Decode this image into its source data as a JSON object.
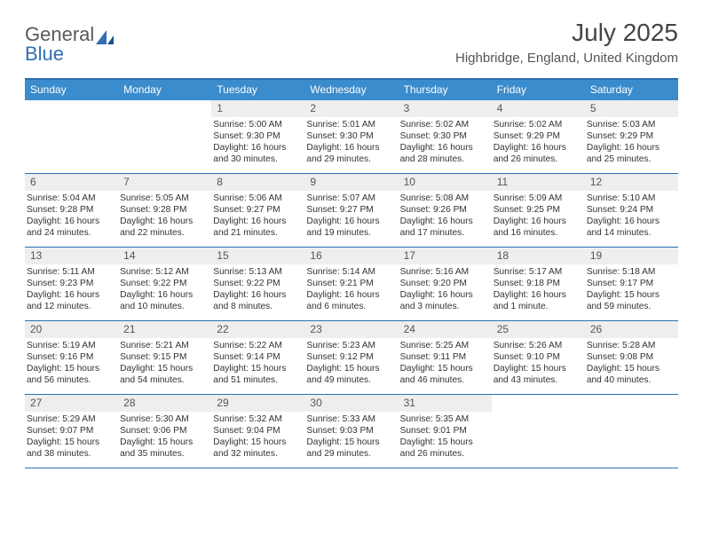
{
  "brand": {
    "text1": "General",
    "text2": "Blue"
  },
  "title": "July 2025",
  "location": "Highbridge, England, United Kingdom",
  "colors": {
    "header_bg": "#3b8ccc",
    "header_text": "#ffffff",
    "border": "#2a6db5",
    "daynum_bg": "#eeeeee",
    "text": "#333333"
  },
  "dayNames": [
    "Sunday",
    "Monday",
    "Tuesday",
    "Wednesday",
    "Thursday",
    "Friday",
    "Saturday"
  ],
  "weeks": [
    [
      {
        "day": "",
        "sunrise": "",
        "sunset": "",
        "daylight": ""
      },
      {
        "day": "",
        "sunrise": "",
        "sunset": "",
        "daylight": ""
      },
      {
        "day": "1",
        "sunrise": "Sunrise: 5:00 AM",
        "sunset": "Sunset: 9:30 PM",
        "daylight": "Daylight: 16 hours and 30 minutes."
      },
      {
        "day": "2",
        "sunrise": "Sunrise: 5:01 AM",
        "sunset": "Sunset: 9:30 PM",
        "daylight": "Daylight: 16 hours and 29 minutes."
      },
      {
        "day": "3",
        "sunrise": "Sunrise: 5:02 AM",
        "sunset": "Sunset: 9:30 PM",
        "daylight": "Daylight: 16 hours and 28 minutes."
      },
      {
        "day": "4",
        "sunrise": "Sunrise: 5:02 AM",
        "sunset": "Sunset: 9:29 PM",
        "daylight": "Daylight: 16 hours and 26 minutes."
      },
      {
        "day": "5",
        "sunrise": "Sunrise: 5:03 AM",
        "sunset": "Sunset: 9:29 PM",
        "daylight": "Daylight: 16 hours and 25 minutes."
      }
    ],
    [
      {
        "day": "6",
        "sunrise": "Sunrise: 5:04 AM",
        "sunset": "Sunset: 9:28 PM",
        "daylight": "Daylight: 16 hours and 24 minutes."
      },
      {
        "day": "7",
        "sunrise": "Sunrise: 5:05 AM",
        "sunset": "Sunset: 9:28 PM",
        "daylight": "Daylight: 16 hours and 22 minutes."
      },
      {
        "day": "8",
        "sunrise": "Sunrise: 5:06 AM",
        "sunset": "Sunset: 9:27 PM",
        "daylight": "Daylight: 16 hours and 21 minutes."
      },
      {
        "day": "9",
        "sunrise": "Sunrise: 5:07 AM",
        "sunset": "Sunset: 9:27 PM",
        "daylight": "Daylight: 16 hours and 19 minutes."
      },
      {
        "day": "10",
        "sunrise": "Sunrise: 5:08 AM",
        "sunset": "Sunset: 9:26 PM",
        "daylight": "Daylight: 16 hours and 17 minutes."
      },
      {
        "day": "11",
        "sunrise": "Sunrise: 5:09 AM",
        "sunset": "Sunset: 9:25 PM",
        "daylight": "Daylight: 16 hours and 16 minutes."
      },
      {
        "day": "12",
        "sunrise": "Sunrise: 5:10 AM",
        "sunset": "Sunset: 9:24 PM",
        "daylight": "Daylight: 16 hours and 14 minutes."
      }
    ],
    [
      {
        "day": "13",
        "sunrise": "Sunrise: 5:11 AM",
        "sunset": "Sunset: 9:23 PM",
        "daylight": "Daylight: 16 hours and 12 minutes."
      },
      {
        "day": "14",
        "sunrise": "Sunrise: 5:12 AM",
        "sunset": "Sunset: 9:22 PM",
        "daylight": "Daylight: 16 hours and 10 minutes."
      },
      {
        "day": "15",
        "sunrise": "Sunrise: 5:13 AM",
        "sunset": "Sunset: 9:22 PM",
        "daylight": "Daylight: 16 hours and 8 minutes."
      },
      {
        "day": "16",
        "sunrise": "Sunrise: 5:14 AM",
        "sunset": "Sunset: 9:21 PM",
        "daylight": "Daylight: 16 hours and 6 minutes."
      },
      {
        "day": "17",
        "sunrise": "Sunrise: 5:16 AM",
        "sunset": "Sunset: 9:20 PM",
        "daylight": "Daylight: 16 hours and 3 minutes."
      },
      {
        "day": "18",
        "sunrise": "Sunrise: 5:17 AM",
        "sunset": "Sunset: 9:18 PM",
        "daylight": "Daylight: 16 hours and 1 minute."
      },
      {
        "day": "19",
        "sunrise": "Sunrise: 5:18 AM",
        "sunset": "Sunset: 9:17 PM",
        "daylight": "Daylight: 15 hours and 59 minutes."
      }
    ],
    [
      {
        "day": "20",
        "sunrise": "Sunrise: 5:19 AM",
        "sunset": "Sunset: 9:16 PM",
        "daylight": "Daylight: 15 hours and 56 minutes."
      },
      {
        "day": "21",
        "sunrise": "Sunrise: 5:21 AM",
        "sunset": "Sunset: 9:15 PM",
        "daylight": "Daylight: 15 hours and 54 minutes."
      },
      {
        "day": "22",
        "sunrise": "Sunrise: 5:22 AM",
        "sunset": "Sunset: 9:14 PM",
        "daylight": "Daylight: 15 hours and 51 minutes."
      },
      {
        "day": "23",
        "sunrise": "Sunrise: 5:23 AM",
        "sunset": "Sunset: 9:12 PM",
        "daylight": "Daylight: 15 hours and 49 minutes."
      },
      {
        "day": "24",
        "sunrise": "Sunrise: 5:25 AM",
        "sunset": "Sunset: 9:11 PM",
        "daylight": "Daylight: 15 hours and 46 minutes."
      },
      {
        "day": "25",
        "sunrise": "Sunrise: 5:26 AM",
        "sunset": "Sunset: 9:10 PM",
        "daylight": "Daylight: 15 hours and 43 minutes."
      },
      {
        "day": "26",
        "sunrise": "Sunrise: 5:28 AM",
        "sunset": "Sunset: 9:08 PM",
        "daylight": "Daylight: 15 hours and 40 minutes."
      }
    ],
    [
      {
        "day": "27",
        "sunrise": "Sunrise: 5:29 AM",
        "sunset": "Sunset: 9:07 PM",
        "daylight": "Daylight: 15 hours and 38 minutes."
      },
      {
        "day": "28",
        "sunrise": "Sunrise: 5:30 AM",
        "sunset": "Sunset: 9:06 PM",
        "daylight": "Daylight: 15 hours and 35 minutes."
      },
      {
        "day": "29",
        "sunrise": "Sunrise: 5:32 AM",
        "sunset": "Sunset: 9:04 PM",
        "daylight": "Daylight: 15 hours and 32 minutes."
      },
      {
        "day": "30",
        "sunrise": "Sunrise: 5:33 AM",
        "sunset": "Sunset: 9:03 PM",
        "daylight": "Daylight: 15 hours and 29 minutes."
      },
      {
        "day": "31",
        "sunrise": "Sunrise: 5:35 AM",
        "sunset": "Sunset: 9:01 PM",
        "daylight": "Daylight: 15 hours and 26 minutes."
      },
      {
        "day": "",
        "sunrise": "",
        "sunset": "",
        "daylight": ""
      },
      {
        "day": "",
        "sunrise": "",
        "sunset": "",
        "daylight": ""
      }
    ]
  ]
}
